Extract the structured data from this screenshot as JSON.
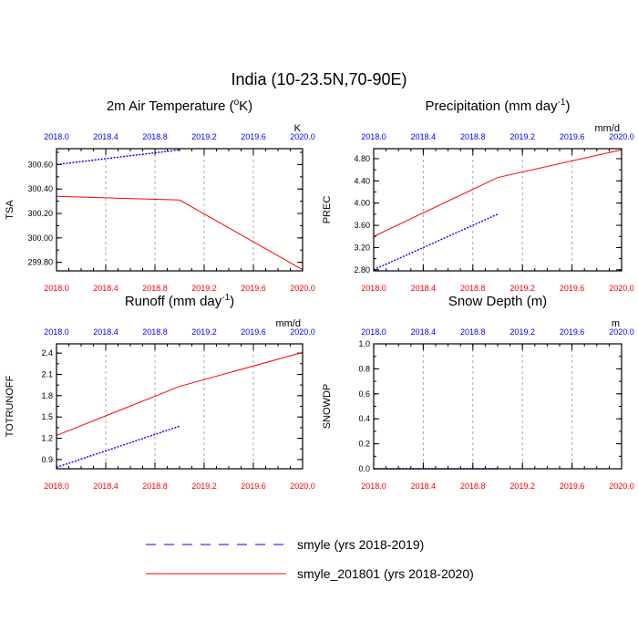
{
  "figure": {
    "title": "India (10-23.5N,70-90E)"
  },
  "colors": {
    "series_dotted": "#0000ff",
    "series_solid": "#ff0000",
    "top_tick_labels": "#0000ff",
    "bottom_tick_labels": "#ff0000",
    "grid": "#aaaaaa",
    "axes": "#000000"
  },
  "legend": {
    "placement": "bottom-center",
    "items": [
      {
        "label": "smyle (yrs 2018-2019)",
        "color": "#0000ff",
        "style": "dashed"
      },
      {
        "label": "smyle_201801 (yrs 2018-2020)",
        "color": "#ff0000",
        "style": "solid"
      }
    ]
  },
  "chart_data": [
    {
      "type": "line",
      "title": "2m Air Temperature (",
      "title_super": "o",
      "title_after": "K)",
      "units": "K",
      "ylabel": "TSA",
      "xlim": [
        2018.0,
        2020.0
      ],
      "ylim": [
        299.73,
        300.73
      ],
      "x_ticks": [
        "2018.0",
        "2018.4",
        "2018.8",
        "2019.2",
        "2019.6",
        "2020.0"
      ],
      "x_tick_values": [
        2018.0,
        2018.4,
        2018.8,
        2019.2,
        2019.6,
        2020.0
      ],
      "y_ticks": [
        "299.80",
        "300.00",
        "300.20",
        "300.40",
        "300.60"
      ],
      "y_tick_values": [
        299.8,
        300.0,
        300.2,
        300.4,
        300.6
      ],
      "grid": "vertical dashed",
      "series": [
        {
          "x": [
            2018.0,
            2019.0
          ],
          "y": [
            300.6,
            300.72
          ],
          "color": "#0000ff",
          "style": "dotted"
        },
        {
          "x": [
            2018.0,
            2019.0,
            2020.0
          ],
          "y": [
            300.34,
            300.31,
            299.74
          ],
          "color": "#ff0000",
          "style": "solid"
        }
      ]
    },
    {
      "type": "line",
      "title": "Precipitation (mm day",
      "title_super": "-1",
      "title_after": ")",
      "units": "mm/d",
      "ylabel": "PREC",
      "xlim": [
        2018.0,
        2020.0
      ],
      "ylim": [
        2.78,
        4.98
      ],
      "x_ticks": [
        "2018.0",
        "2018.4",
        "2018.8",
        "2019.2",
        "2019.6",
        "2020.0"
      ],
      "x_tick_values": [
        2018.0,
        2018.4,
        2018.8,
        2019.2,
        2019.6,
        2020.0
      ],
      "y_ticks": [
        "2.80",
        "3.20",
        "3.60",
        "4.00",
        "4.40",
        "4.80"
      ],
      "y_tick_values": [
        2.8,
        3.2,
        3.6,
        4.0,
        4.4,
        4.8
      ],
      "grid": "vertical dashed",
      "series": [
        {
          "x": [
            2018.0,
            2019.0
          ],
          "y": [
            2.8,
            3.8
          ],
          "color": "#0000ff",
          "style": "dotted"
        },
        {
          "x": [
            2018.0,
            2019.0,
            2020.0
          ],
          "y": [
            3.4,
            4.46,
            4.96
          ],
          "color": "#ff0000",
          "style": "solid"
        }
      ]
    },
    {
      "type": "line",
      "title": "Runoff (mm day",
      "title_super": "-1",
      "title_after": ")",
      "units": "mm/d",
      "ylabel": "TOTRUNOFF",
      "xlim": [
        2018.0,
        2020.0
      ],
      "ylim": [
        0.77,
        2.53
      ],
      "x_ticks": [
        "2018.0",
        "2018.4",
        "2018.8",
        "2019.2",
        "2019.6",
        "2020.0"
      ],
      "x_tick_values": [
        2018.0,
        2018.4,
        2018.8,
        2019.2,
        2019.6,
        2020.0
      ],
      "y_ticks": [
        "0.9",
        "1.2",
        "1.5",
        "1.8",
        "2.1",
        "2.4"
      ],
      "y_tick_values": [
        0.9,
        1.2,
        1.5,
        1.8,
        2.1,
        2.4
      ],
      "grid": "vertical dashed",
      "series": [
        {
          "x": [
            2018.0,
            2019.0
          ],
          "y": [
            0.79,
            1.37
          ],
          "color": "#0000ff",
          "style": "dotted"
        },
        {
          "x": [
            2018.0,
            2019.0,
            2020.0
          ],
          "y": [
            1.24,
            1.93,
            2.41
          ],
          "color": "#ff0000",
          "style": "solid"
        }
      ]
    },
    {
      "type": "line",
      "title": "Snow Depth (m)",
      "title_super": "",
      "title_after": "",
      "units": "m",
      "ylabel": "SNOWDP",
      "xlim": [
        2018.0,
        2020.0
      ],
      "ylim": [
        0.0,
        1.0
      ],
      "x_ticks": [
        "2018.0",
        "2018.4",
        "2018.8",
        "2019.2",
        "2019.6",
        "2020.0"
      ],
      "x_tick_values": [
        2018.0,
        2018.4,
        2018.8,
        2019.2,
        2019.6,
        2020.0
      ],
      "y_ticks": [
        "0.0",
        "0.2",
        "0.4",
        "0.6",
        "0.8",
        "1.0"
      ],
      "y_tick_values": [
        0.0,
        0.2,
        0.4,
        0.6,
        0.8,
        1.0
      ],
      "grid": "vertical dashed",
      "series": [
        {
          "x": [
            2018.0,
            2019.0
          ],
          "y": [
            0.0,
            0.0
          ],
          "color": "#0000ff",
          "style": "dotted"
        },
        {
          "x": [
            2018.0,
            2020.0
          ],
          "y": [
            0.0,
            0.0
          ],
          "color": "#ff0000",
          "style": "solid"
        }
      ]
    }
  ]
}
